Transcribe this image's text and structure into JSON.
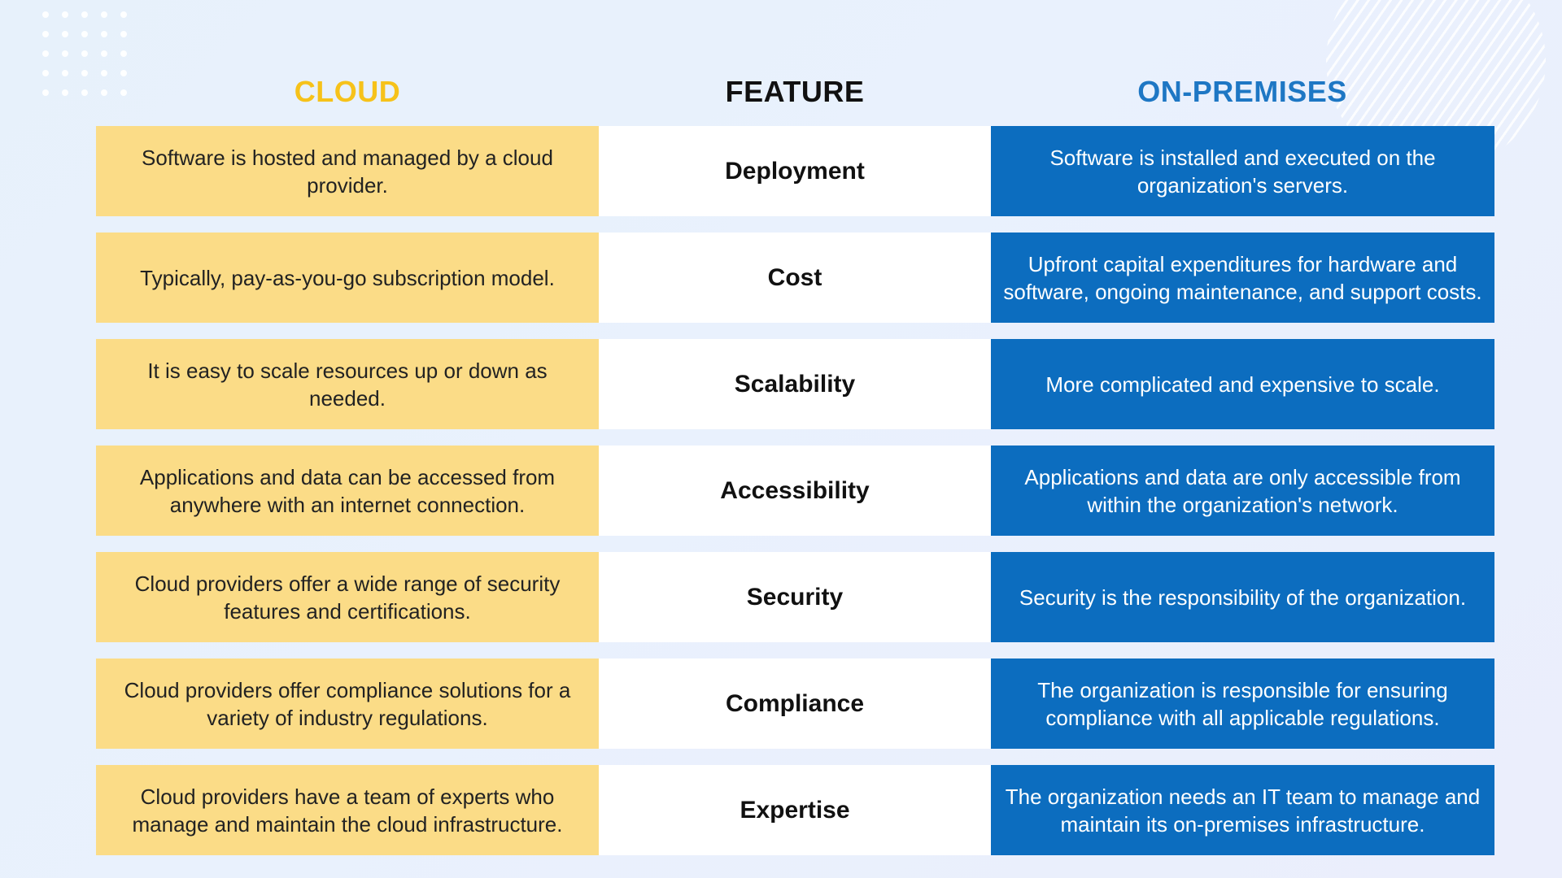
{
  "headers": {
    "cloud": "CLOUD",
    "feature": "FEATURE",
    "onpremises": "ON-PREMISES"
  },
  "colors": {
    "cloud_header": "#f6c21a",
    "cloud_cell": "#fbdc87",
    "onprem_header": "#1e77c4",
    "onprem_cell": "#0c6dbf",
    "feature_cell": "#ffffff"
  },
  "rows": [
    {
      "feature": "Deployment",
      "cloud": "Software is hosted and managed by a cloud provider.",
      "onpremises": "Software is installed and executed on the organization's servers."
    },
    {
      "feature": "Cost",
      "cloud": "Typically, pay-as-you-go subscription model.",
      "onpremises": "Upfront capital expenditures for hardware and software, ongoing maintenance, and support costs."
    },
    {
      "feature": "Scalability",
      "cloud": "It is easy to scale resources up or down as needed.",
      "onpremises": "More complicated and expensive to scale."
    },
    {
      "feature": "Accessibility",
      "cloud": "Applications and data can be accessed from anywhere with an internet connection.",
      "onpremises": "Applications and data are only accessible from within the organization's network."
    },
    {
      "feature": "Security",
      "cloud": "Cloud providers offer a wide range of security features and certifications.",
      "onpremises": "Security is the responsibility of the organization."
    },
    {
      "feature": "Compliance",
      "cloud": "Cloud providers offer compliance solutions for a variety of industry regulations.",
      "onpremises": "The organization is responsible for ensuring compliance with all applicable regulations."
    },
    {
      "feature": "Expertise",
      "cloud": "Cloud providers have a team of experts who manage and maintain the cloud infrastructure.",
      "onpremises": "The organization needs an IT team to manage and maintain its on-premises infrastructure."
    }
  ]
}
